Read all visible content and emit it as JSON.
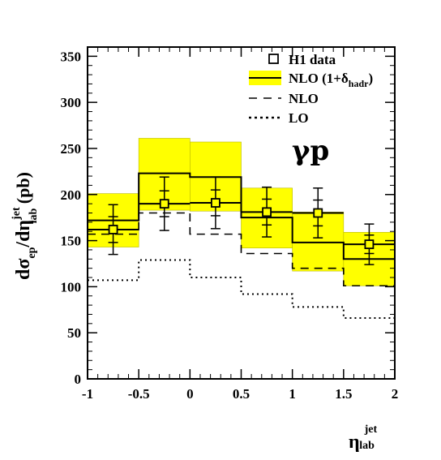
{
  "chart_data": {
    "type": "step-histogram",
    "process_label": "γp",
    "ylabel": {
      "main": "dσ",
      "sub1": "ep",
      "mid": "/dη",
      "sup": "jet",
      "sub2": "lab",
      "unit": " (pb)"
    },
    "xlabel": {
      "main": "η",
      "sup": "jet",
      "sub": "lab"
    },
    "xlim": [
      -1,
      2
    ],
    "ylim": [
      0,
      360
    ],
    "xticks": [
      -1,
      -0.5,
      0,
      0.5,
      1,
      1.5,
      2
    ],
    "xtick_labels": [
      "-1",
      "-0.5",
      "0",
      "0.5",
      "1",
      "1.5",
      "2"
    ],
    "yticks": [
      0,
      50,
      100,
      150,
      200,
      250,
      300,
      350
    ],
    "ytick_labels": [
      "0",
      "50",
      "100",
      "150",
      "200",
      "250",
      "300",
      "350"
    ],
    "bins": [
      [
        -1,
        -0.5
      ],
      [
        -0.5,
        0
      ],
      [
        0,
        0.5
      ],
      [
        0.5,
        1
      ],
      [
        1,
        1.5
      ],
      [
        1.5,
        2
      ]
    ],
    "series": [
      {
        "name": "H1 data",
        "kind": "points",
        "x": [
          -0.75,
          -0.25,
          0.25,
          0.75,
          1.25,
          1.75
        ],
        "y": [
          162,
          190,
          191,
          181,
          180,
          146
        ],
        "stat_err": [
          14,
          14,
          14,
          14,
          14,
          10
        ],
        "total_err": [
          27,
          29,
          28,
          27,
          27,
          22
        ]
      },
      {
        "name": "NLO (1+δ",
        "name_sub": "hadr",
        "name_end": ")",
        "kind": "band",
        "color": "#ffff00",
        "central": [
          172,
          223,
          219,
          175,
          148,
          130
        ],
        "low": [
          143,
          183,
          182,
          142,
          117,
          101
        ],
        "high": [
          201,
          261,
          257,
          207,
          181,
          159
        ]
      },
      {
        "name": "NLO",
        "kind": "dashed-histogram",
        "values": [
          157,
          180,
          157,
          136,
          120,
          101
        ]
      },
      {
        "name": "LO",
        "kind": "dotted-histogram",
        "values": [
          107,
          129,
          110,
          92,
          78,
          66
        ]
      }
    ]
  }
}
